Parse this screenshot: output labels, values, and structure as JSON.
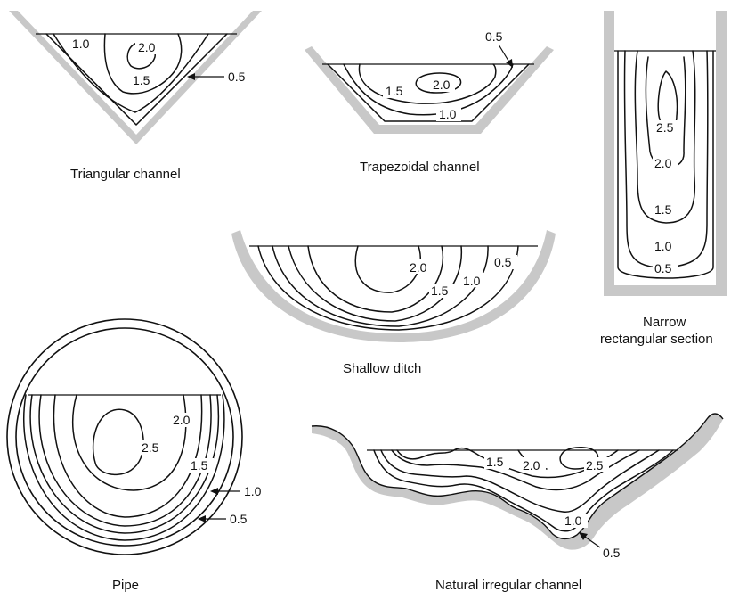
{
  "sections": {
    "triangular": {
      "caption": "Triangular channel",
      "labels": {
        "v20": "2.0",
        "v15": "1.5",
        "v10": "1.0",
        "v05": "0.5"
      }
    },
    "trapezoidal": {
      "caption": "Trapezoidal channel",
      "labels": {
        "v20": "2.0",
        "v15": "1.5",
        "v10": "1.0",
        "v05": "0.5"
      }
    },
    "narrow_rect": {
      "caption_line1": "Narrow",
      "caption_line2": "rectangular section",
      "labels": {
        "v25": "2.5",
        "v20": "2.0",
        "v15": "1.5",
        "v10": "1.0",
        "v05": "0.5"
      }
    },
    "shallow_ditch": {
      "caption": "Shallow ditch",
      "labels": {
        "v20": "2.0",
        "v15": "1.5",
        "v10": "1.0",
        "v05": "0.5"
      }
    },
    "pipe": {
      "caption": "Pipe",
      "labels": {
        "v25": "2.5",
        "v20": "2.0",
        "v15": "1.5",
        "v10": "1.0",
        "v05": "0.5"
      }
    },
    "natural": {
      "caption": "Natural irregular channel",
      "labels": {
        "v15": "1.5",
        "v20": "2.0",
        "v25": "2.5",
        "v10": "1.0",
        "v05": "0.5"
      }
    }
  }
}
